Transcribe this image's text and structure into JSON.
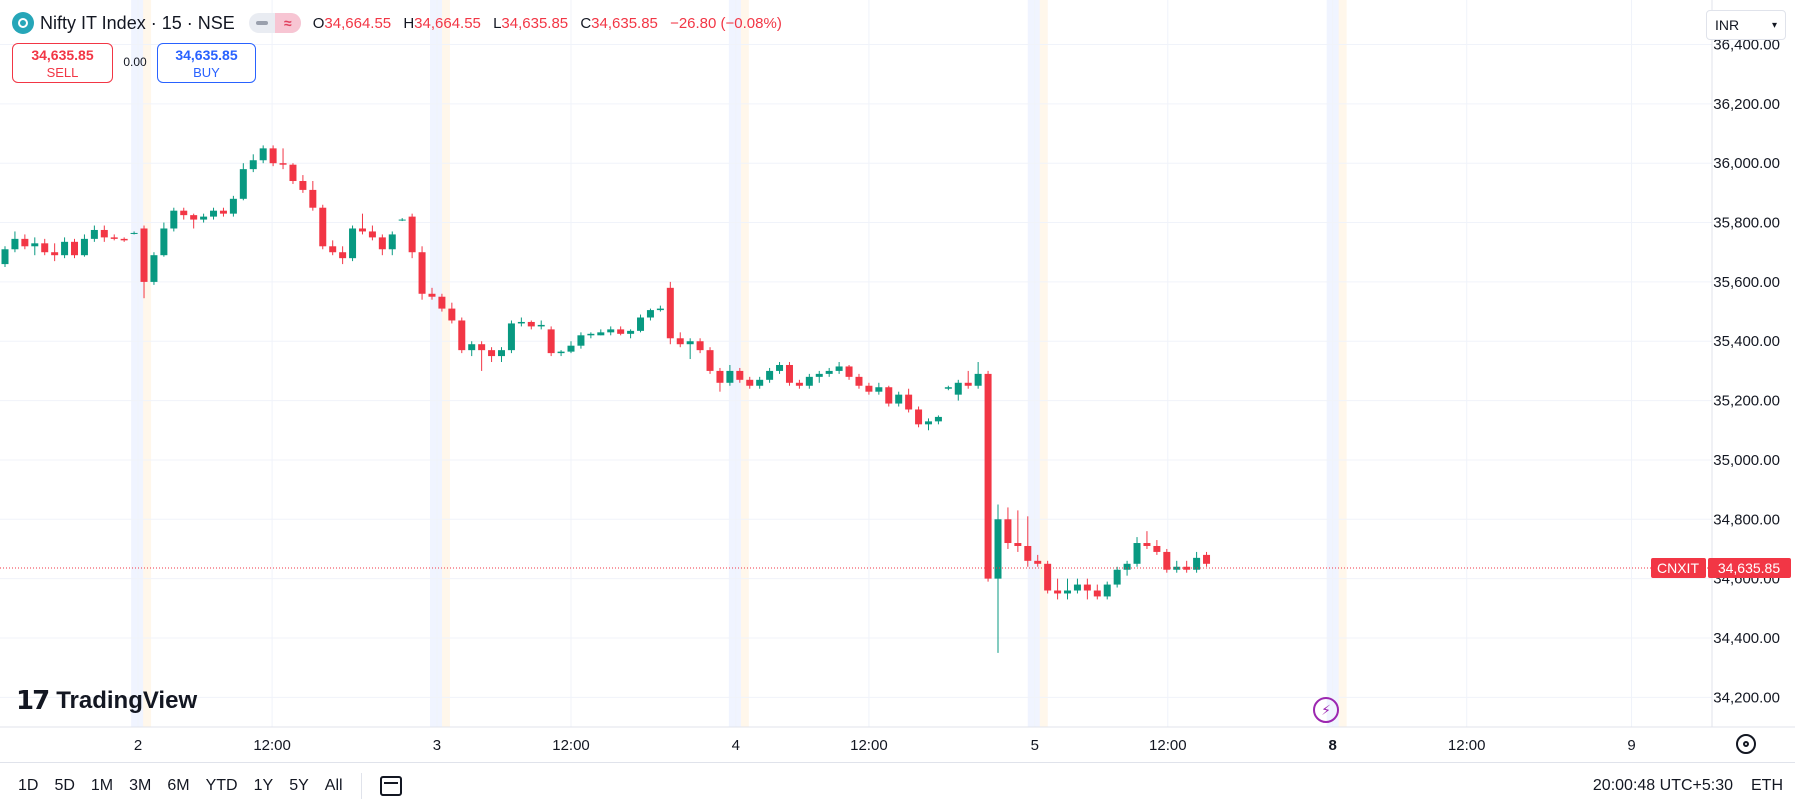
{
  "header": {
    "title": "Nifty IT Index · 15 · NSE",
    "ohlc": [
      {
        "k": "O",
        "v": "34,664.55"
      },
      {
        "k": "H",
        "v": "34,664.55"
      },
      {
        "k": "L",
        "v": "34,635.85"
      },
      {
        "k": "C",
        "v": "34,635.85"
      }
    ],
    "change": "−26.80 (−0.08%)"
  },
  "trade": {
    "sell_price": "34,635.85",
    "sell_label": "SELL",
    "spread": "0.00",
    "buy_price": "34,635.85",
    "buy_label": "BUY"
  },
  "currency": "INR",
  "logo_text": "TradingView",
  "bottom_bar": {
    "ranges": [
      "1D",
      "5D",
      "1M",
      "3M",
      "6M",
      "YTD",
      "1Y",
      "5Y",
      "All"
    ],
    "time": "20:00:48 UTC+5:30",
    "session": "ETH"
  },
  "colors": {
    "up": "#089981",
    "down": "#f23645",
    "grid": "#f0f3fa",
    "label_bg": "#f23645"
  },
  "chart_data": {
    "type": "candlestick",
    "symbol_label": "CNXIT",
    "last_price_label": "34,635.85",
    "last_price": 34635.85,
    "ylim": [
      34100,
      36550
    ],
    "y_ticks": [
      34200,
      34400,
      34600,
      34800,
      35000,
      35200,
      35400,
      35600,
      35800,
      36000,
      36200,
      36400
    ],
    "y_tick_labels": [
      "34,200.00",
      "34,400.00",
      "34,600.00",
      "34,800.00",
      "35,000.00",
      "35,200.00",
      "35,400.00",
      "35,600.00",
      "35,800.00",
      "36,000.00",
      "36,200.00",
      "36,400.00"
    ],
    "x_ticks": [
      {
        "label": "2",
        "bar": 13.4
      },
      {
        "label": "12:00",
        "bar": 26.9
      },
      {
        "label": "3",
        "bar": 43.5
      },
      {
        "label": "12:00",
        "bar": 57.0
      },
      {
        "label": "4",
        "bar": 73.6
      },
      {
        "label": "12:00",
        "bar": 87.0
      },
      {
        "label": "5",
        "bar": 103.7
      },
      {
        "label": "12:00",
        "bar": 117.1
      },
      {
        "label": "8",
        "bar": 133.7
      },
      {
        "label": "12:00",
        "bar": 147.2
      },
      {
        "label": "9",
        "bar": 163.8
      }
    ],
    "session_breaks": [
      12.9,
      43.0,
      73.1,
      103.2,
      133.3
    ],
    "ohlc": [
      [
        35660,
        35720,
        35650,
        35710
      ],
      [
        35710,
        35770,
        35700,
        35745
      ],
      [
        35745,
        35760,
        35710,
        35720
      ],
      [
        35720,
        35750,
        35690,
        35730
      ],
      [
        35730,
        35745,
        35690,
        35700
      ],
      [
        35700,
        35730,
        35670,
        35690
      ],
      [
        35690,
        35750,
        35680,
        35735
      ],
      [
        35735,
        35745,
        35680,
        35690
      ],
      [
        35690,
        35760,
        35685,
        35745
      ],
      [
        35745,
        35790,
        35735,
        35775
      ],
      [
        35775,
        35790,
        35735,
        35750
      ],
      [
        35750,
        35760,
        35740,
        35745
      ],
      [
        35745,
        35750,
        35735,
        35740
      ],
      [
        35765,
        35770,
        35760,
        35765
      ],
      [
        35780,
        35790,
        35545,
        35600
      ],
      [
        35600,
        35700,
        35590,
        35690
      ],
      [
        35690,
        35800,
        35685,
        35780
      ],
      [
        35780,
        35850,
        35770,
        35840
      ],
      [
        35840,
        35850,
        35810,
        35825
      ],
      [
        35825,
        35830,
        35780,
        35810
      ],
      [
        35810,
        35830,
        35800,
        35820
      ],
      [
        35820,
        35850,
        35810,
        35840
      ],
      [
        35840,
        35850,
        35820,
        35830
      ],
      [
        35830,
        35890,
        35820,
        35880
      ],
      [
        35880,
        36000,
        35875,
        35980
      ],
      [
        35980,
        36030,
        35970,
        36010
      ],
      [
        36010,
        36060,
        36000,
        36050
      ],
      [
        36050,
        36060,
        35990,
        36000
      ],
      [
        36000,
        36050,
        35980,
        35995
      ],
      [
        35995,
        36000,
        35930,
        35940
      ],
      [
        35940,
        35960,
        35900,
        35910
      ],
      [
        35910,
        35940,
        35840,
        35850
      ],
      [
        35850,
        35860,
        35710,
        35720
      ],
      [
        35720,
        35740,
        35690,
        35700
      ],
      [
        35700,
        35720,
        35660,
        35680
      ],
      [
        35680,
        35790,
        35670,
        35780
      ],
      [
        35780,
        35830,
        35760,
        35770
      ],
      [
        35770,
        35790,
        35740,
        35750
      ],
      [
        35750,
        35760,
        35690,
        35710
      ],
      [
        35710,
        35770,
        35690,
        35760
      ],
      [
        35810,
        35815,
        35805,
        35810
      ],
      [
        35820,
        35830,
        35680,
        35700
      ],
      [
        35700,
        35720,
        35540,
        35560
      ],
      [
        35560,
        35580,
        35540,
        35550
      ],
      [
        35550,
        35560,
        35500,
        35510
      ],
      [
        35510,
        35530,
        35460,
        35470
      ],
      [
        35470,
        35480,
        35360,
        35370
      ],
      [
        35370,
        35400,
        35350,
        35390
      ],
      [
        35390,
        35400,
        35300,
        35370
      ],
      [
        35370,
        35380,
        35330,
        35350
      ],
      [
        35350,
        35380,
        35330,
        35370
      ],
      [
        35370,
        35470,
        35360,
        35460
      ],
      [
        35460,
        35480,
        35450,
        35465
      ],
      [
        35465,
        35470,
        35440,
        35450
      ],
      [
        35450,
        35470,
        35440,
        35455
      ],
      [
        35440,
        35450,
        35350,
        35360
      ],
      [
        35360,
        35370,
        35350,
        35365
      ],
      [
        35365,
        35400,
        35360,
        35385
      ],
      [
        35385,
        35430,
        35375,
        35420
      ],
      [
        35420,
        35430,
        35410,
        35425
      ],
      [
        35420,
        35440,
        35420,
        35430
      ],
      [
        35430,
        35450,
        35420,
        35440
      ],
      [
        35440,
        35450,
        35420,
        35425
      ],
      [
        35425,
        35440,
        35410,
        35435
      ],
      [
        35435,
        35490,
        35430,
        35480
      ],
      [
        35480,
        35510,
        35470,
        35505
      ],
      [
        35505,
        35520,
        35500,
        35510
      ],
      [
        35580,
        35600,
        35390,
        35410
      ],
      [
        35410,
        35430,
        35380,
        35390
      ],
      [
        35390,
        35410,
        35340,
        35400
      ],
      [
        35400,
        35410,
        35360,
        35370
      ],
      [
        35370,
        35380,
        35290,
        35300
      ],
      [
        35300,
        35310,
        35230,
        35260
      ],
      [
        35260,
        35320,
        35250,
        35300
      ],
      [
        35300,
        35310,
        35260,
        35270
      ],
      [
        35270,
        35280,
        35240,
        35250
      ],
      [
        35250,
        35280,
        35240,
        35270
      ],
      [
        35270,
        35310,
        35260,
        35300
      ],
      [
        35300,
        35330,
        35290,
        35320
      ],
      [
        35320,
        35330,
        35250,
        35260
      ],
      [
        35260,
        35270,
        35240,
        35250
      ],
      [
        35250,
        35290,
        35240,
        35280
      ],
      [
        35280,
        35300,
        35260,
        35290
      ],
      [
        35290,
        35310,
        35280,
        35300
      ],
      [
        35300,
        35330,
        35290,
        35315
      ],
      [
        35315,
        35320,
        35270,
        35280
      ],
      [
        35280,
        35290,
        35240,
        35250
      ],
      [
        35250,
        35260,
        35220,
        35230
      ],
      [
        35230,
        35260,
        35220,
        35245
      ],
      [
        35245,
        35250,
        35180,
        35190
      ],
      [
        35190,
        35230,
        35180,
        35220
      ],
      [
        35220,
        35240,
        35160,
        35170
      ],
      [
        35170,
        35180,
        35110,
        35120
      ],
      [
        35120,
        35140,
        35100,
        35130
      ],
      [
        35130,
        35150,
        35120,
        35145
      ],
      [
        35240,
        35250,
        35235,
        35245
      ],
      [
        35220,
        35270,
        35200,
        35260
      ],
      [
        35260,
        35300,
        35240,
        35250
      ],
      [
        35250,
        35330,
        35240,
        35290
      ],
      [
        35290,
        35300,
        34590,
        34600
      ],
      [
        34600,
        34850,
        34350,
        34800
      ],
      [
        34800,
        34840,
        34700,
        34720
      ],
      [
        34720,
        34830,
        34690,
        34710
      ],
      [
        34710,
        34810,
        34640,
        34660
      ],
      [
        34660,
        34680,
        34640,
        34650
      ],
      [
        34650,
        34660,
        34550,
        34560
      ],
      [
        34560,
        34600,
        34530,
        34550
      ],
      [
        34550,
        34600,
        34530,
        34560
      ],
      [
        34560,
        34600,
        34550,
        34580
      ],
      [
        34580,
        34600,
        34530,
        34560
      ],
      [
        34560,
        34580,
        34530,
        34540
      ],
      [
        34540,
        34590,
        34530,
        34580
      ],
      [
        34580,
        34640,
        34570,
        34630
      ],
      [
        34630,
        34660,
        34610,
        34650
      ],
      [
        34650,
        34740,
        34640,
        34720
      ],
      [
        34720,
        34760,
        34700,
        34710
      ],
      [
        34710,
        34730,
        34680,
        34690
      ],
      [
        34690,
        34700,
        34620,
        34630
      ],
      [
        34630,
        34660,
        34620,
        34640
      ],
      [
        34640,
        34660,
        34620,
        34630
      ],
      [
        34630,
        34690,
        34620,
        34670
      ],
      [
        34680,
        34690,
        34640,
        34650
      ]
    ]
  }
}
